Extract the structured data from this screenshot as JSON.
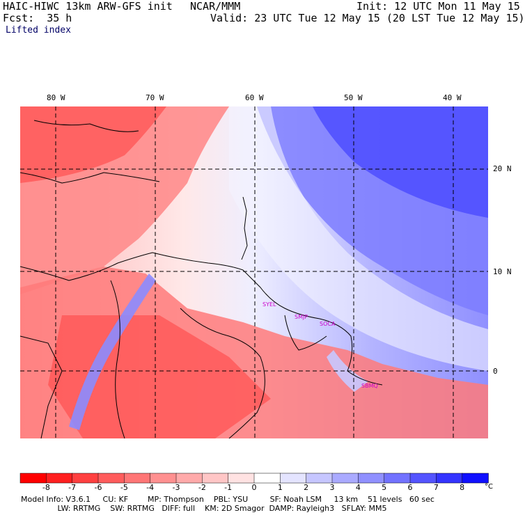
{
  "header": {
    "model": "HAIC-HIWC 13km ARW-GFS init",
    "center": "NCAR/MMM",
    "init": "Init: 12 UTC Mon 11 May 15",
    "fcst": "Fcst:  35 h",
    "valid": "Valid: 23 UTC Tue 12 May 15 (20 LST Tue 12 May 15)",
    "field": "Lifted index"
  },
  "map": {
    "lon_labels": [
      "80 W",
      "70 W",
      "60 W",
      "50 W",
      "40 W"
    ],
    "lat_labels": [
      "20 N",
      "10 N",
      "0"
    ],
    "sites": [
      "SYEL",
      "SMJP",
      "SOCA",
      "SBMQ"
    ]
  },
  "colorbar": {
    "ticks": [
      "-8",
      "-7",
      "-6",
      "-5",
      "-4",
      "-3",
      "-2",
      "-1",
      "0",
      "1",
      "2",
      "3",
      "4",
      "5",
      "6",
      "7",
      "8"
    ],
    "unit": "°C",
    "colors": [
      "#ff0000",
      "#ff2020",
      "#ff4040",
      "#ff5c5c",
      "#ff7676",
      "#ff9090",
      "#ffaaaa",
      "#ffc6c6",
      "#ffe2e2",
      "#ffffff",
      "#e4e4ff",
      "#c6c6ff",
      "#aaaaff",
      "#9090ff",
      "#7272ff",
      "#5454ff",
      "#3434ff",
      "#1010ff"
    ]
  },
  "footer": {
    "line1": "Model Info: V3.6.1     CU: KF        MP: Thompson    PBL: YSU         SF: Noah LSM     13 km    51 levels   60 sec",
    "line2": "               LW: RRTMG    SW: RRTMG   DIFF: full    KM: 2D Smagor  DAMP: Rayleigh3   SFLAY: MM5"
  }
}
